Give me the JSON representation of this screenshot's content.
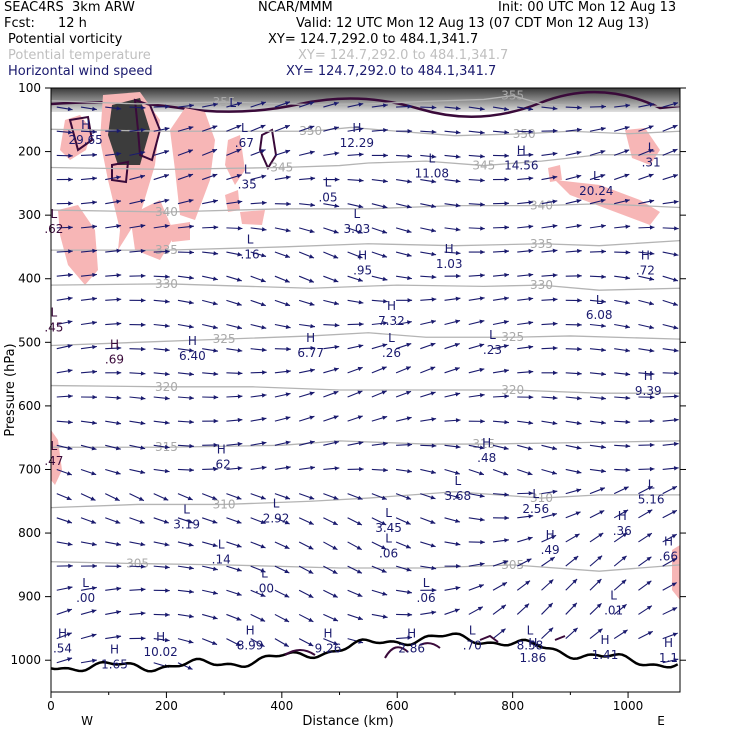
{
  "header": {
    "model": "SEAC4RS  3km ARW",
    "org": "NCAR/MMM",
    "init": "Init: 00 UTC Mon 12 Aug 13",
    "fcst_label": "Fcst:",
    "fcst_value": "12 h",
    "valid": "Valid: 12 UTC Mon 12 Aug 13 (07 CDT Mon 12 Aug 13)",
    "fields": [
      {
        "name": "Potential vorticity",
        "xy": "XY= 124.7,292.0 to 484.1,341.7",
        "color": "#000000"
      },
      {
        "name": "Potential temperature",
        "xy": "XY= 124.7,292.0 to 484.1,341.7",
        "color": "#bfbfbf"
      },
      {
        "name": "Horizontal wind speed",
        "xy": "XY= 124.7,292.0 to 484.1,341.7",
        "color": "#1a1a6e"
      }
    ]
  },
  "chart_data": {
    "type": "cross-section",
    "xlabel": "Distance (km)",
    "ylabel": "Pressure (hPa)",
    "xlim": [
      0,
      1090
    ],
    "ylim": [
      1050,
      100
    ],
    "x_ticks": [
      "0",
      "200",
      "400",
      "600",
      "800",
      "1000"
    ],
    "y_ticks": [
      "100",
      "200",
      "300",
      "400",
      "500",
      "600",
      "700",
      "800",
      "900",
      "1000"
    ],
    "x_ends": {
      "left": "W",
      "right": "E"
    },
    "colors": {
      "theta": "#b4b4b4",
      "wind": "#1a1a6e",
      "pv_fill": "#f7b6b6",
      "pv_line": "#3a0a3a"
    },
    "isentropes": [
      {
        "label": "355",
        "points": [
          [
            0,
            120
          ],
          [
            150,
            125
          ],
          [
            300,
            122
          ],
          [
            450,
            126
          ],
          [
            550,
            125
          ],
          [
            650,
            121
          ],
          [
            750,
            118
          ],
          [
            800,
            112
          ],
          [
            850,
            125
          ],
          [
            950,
            130
          ],
          [
            1090,
            128
          ]
        ]
      },
      {
        "label": "350",
        "points": [
          [
            0,
            165
          ],
          [
            200,
            168
          ],
          [
            450,
            168
          ],
          [
            520,
            162
          ],
          [
            600,
            168
          ],
          [
            700,
            175
          ],
          [
            820,
            172
          ],
          [
            900,
            168
          ],
          [
            1000,
            172
          ],
          [
            1090,
            168
          ]
        ]
      },
      {
        "label": "345",
        "points": [
          [
            0,
            225
          ],
          [
            200,
            228
          ],
          [
            400,
            225
          ],
          [
            500,
            222
          ],
          [
            550,
            218
          ],
          [
            650,
            215
          ],
          [
            750,
            222
          ],
          [
            850,
            215
          ],
          [
            950,
            205
          ],
          [
            1090,
            205
          ]
        ]
      },
      {
        "label": "340",
        "points": [
          [
            0,
            292
          ],
          [
            200,
            295
          ],
          [
            400,
            290
          ],
          [
            550,
            290
          ],
          [
            700,
            285
          ],
          [
            850,
            285
          ],
          [
            950,
            282
          ],
          [
            1090,
            288
          ]
        ]
      },
      {
        "label": "335",
        "points": [
          [
            0,
            355
          ],
          [
            200,
            355
          ],
          [
            400,
            350
          ],
          [
            550,
            345
          ],
          [
            700,
            348
          ],
          [
            850,
            345
          ],
          [
            950,
            348
          ],
          [
            1090,
            340
          ]
        ]
      },
      {
        "label": "330",
        "points": [
          [
            0,
            410
          ],
          [
            200,
            408
          ],
          [
            450,
            415
          ],
          [
            600,
            410
          ],
          [
            750,
            412
          ],
          [
            850,
            410
          ],
          [
            950,
            418
          ],
          [
            1090,
            415
          ]
        ]
      },
      {
        "label": "325",
        "points": [
          [
            0,
            505
          ],
          [
            150,
            500
          ],
          [
            300,
            495
          ],
          [
            450,
            490
          ],
          [
            550,
            485
          ],
          [
            650,
            492
          ],
          [
            800,
            492
          ],
          [
            900,
            490
          ],
          [
            1090,
            495
          ]
        ]
      },
      {
        "label": "320",
        "points": [
          [
            0,
            568
          ],
          [
            200,
            570
          ],
          [
            350,
            570
          ],
          [
            500,
            575
          ],
          [
            650,
            575
          ],
          [
            800,
            575
          ],
          [
            950,
            580
          ],
          [
            1090,
            580
          ]
        ]
      },
      {
        "label": "315",
        "points": [
          [
            0,
            665
          ],
          [
            200,
            665
          ],
          [
            400,
            662
          ],
          [
            500,
            655
          ],
          [
            650,
            660
          ],
          [
            750,
            660
          ],
          [
            900,
            658
          ],
          [
            1090,
            655
          ]
        ]
      },
      {
        "label": "310",
        "points": [
          [
            0,
            760
          ],
          [
            150,
            755
          ],
          [
            300,
            755
          ],
          [
            450,
            750
          ],
          [
            550,
            745
          ],
          [
            700,
            735
          ],
          [
            850,
            745
          ],
          [
            950,
            740
          ],
          [
            1090,
            740
          ]
        ]
      },
      {
        "label": "305",
        "points": [
          [
            0,
            845
          ],
          [
            150,
            848
          ],
          [
            300,
            850
          ],
          [
            500,
            855
          ],
          [
            650,
            855
          ],
          [
            800,
            850
          ],
          [
            950,
            860
          ],
          [
            1090,
            850
          ]
        ]
      }
    ],
    "extrema": [
      {
        "mark": "H",
        "value": "29.65",
        "x": 60,
        "p": 185
      },
      {
        "mark": "L",
        "value": "",
        "x": 315,
        "p": 150
      },
      {
        "mark": "L",
        "value": ".67",
        "x": 335,
        "p": 190
      },
      {
        "mark": "H",
        "value": "12.29",
        "x": 530,
        "p": 190
      },
      {
        "mark": "L",
        "value": "11.08",
        "x": 660,
        "p": 238
      },
      {
        "mark": "H",
        "value": "14.56",
        "x": 815,
        "p": 225
      },
      {
        "mark": "L",
        "value": ".35",
        "x": 340,
        "p": 255
      },
      {
        "mark": "L",
        "value": ".05",
        "x": 480,
        "p": 275
      },
      {
        "mark": "L",
        "value": ".16",
        "x": 345,
        "p": 365
      },
      {
        "mark": "L",
        "value": "3.03",
        "x": 530,
        "p": 325
      },
      {
        "mark": "H",
        "value": ".95",
        "x": 540,
        "p": 390
      },
      {
        "mark": "H",
        "value": "1.03",
        "x": 690,
        "p": 380
      },
      {
        "mark": "L",
        "value": "20.24",
        "x": 945,
        "p": 265
      },
      {
        "mark": "L",
        "value": ".31",
        "x": 1040,
        "p": 220
      },
      {
        "mark": "H",
        "value": ".72",
        "x": 1030,
        "p": 390
      },
      {
        "mark": "L",
        "value": "6.08",
        "x": 950,
        "p": 460
      },
      {
        "mark": "H",
        "value": "7.32",
        "x": 590,
        "p": 470
      },
      {
        "mark": "H",
        "value": ".69",
        "x": 110,
        "p": 530
      },
      {
        "mark": "H",
        "value": "6.40",
        "x": 245,
        "p": 525
      },
      {
        "mark": "H",
        "value": "6.77",
        "x": 450,
        "p": 520
      },
      {
        "mark": "L",
        "value": ".26",
        "x": 590,
        "p": 520
      },
      {
        "mark": "L",
        "value": ".23",
        "x": 765,
        "p": 515
      },
      {
        "mark": "H",
        "value": "9.39",
        "x": 1035,
        "p": 580
      },
      {
        "mark": "H",
        "value": ".62",
        "x": 295,
        "p": 695
      },
      {
        "mark": "H",
        "value": ".48",
        "x": 755,
        "p": 685
      },
      {
        "mark": "L",
        "value": "3.68",
        "x": 705,
        "p": 745
      },
      {
        "mark": "L",
        "value": "2.56",
        "x": 840,
        "p": 765
      },
      {
        "mark": "L",
        "value": "5.16",
        "x": 1040,
        "p": 750
      },
      {
        "mark": "L",
        "value": "3.19",
        "x": 235,
        "p": 790
      },
      {
        "mark": "L",
        "value": "2.92",
        "x": 390,
        "p": 780
      },
      {
        "mark": "L",
        "value": "3.45",
        "x": 585,
        "p": 795
      },
      {
        "mark": "H",
        "value": ".36",
        "x": 990,
        "p": 800
      },
      {
        "mark": "H",
        "value": ".49",
        "x": 865,
        "p": 830
      },
      {
        "mark": "H",
        "value": ".66",
        "x": 1070,
        "p": 840
      },
      {
        "mark": "L",
        "value": ".06",
        "x": 585,
        "p": 835
      },
      {
        "mark": "L",
        "value": ".14",
        "x": 295,
        "p": 845
      },
      {
        "mark": "L",
        "value": ".00",
        "x": 60,
        "p": 905
      },
      {
        "mark": "L",
        "value": ".00",
        "x": 370,
        "p": 890
      },
      {
        "mark": "L",
        "value": ".06",
        "x": 650,
        "p": 905
      },
      {
        "mark": "L",
        "value": ".01",
        "x": 975,
        "p": 925
      },
      {
        "mark": "H",
        "value": "8.99",
        "x": 345,
        "p": 980
      },
      {
        "mark": "H",
        "value": "9.26",
        "x": 480,
        "p": 985
      },
      {
        "mark": "H",
        "value": "2.86",
        "x": 625,
        "p": 985
      },
      {
        "mark": "H",
        "value": "10.02",
        "x": 190,
        "p": 990
      },
      {
        "mark": "H",
        "value": ".54",
        "x": 20,
        "p": 985
      },
      {
        "mark": "H",
        "value": "1.65",
        "x": 110,
        "p": 1010
      },
      {
        "mark": "L",
        "value": "8.58",
        "x": 830,
        "p": 980
      },
      {
        "mark": "H",
        "value": "1.86",
        "x": 835,
        "p": 1000
      },
      {
        "mark": "H",
        "value": "1.41",
        "x": 960,
        "p": 995
      },
      {
        "mark": "H",
        "value": "1.1",
        "x": 1070,
        "p": 1000
      },
      {
        "mark": "L",
        "value": ".45",
        "x": 5,
        "p": 480
      },
      {
        "mark": "L",
        "value": ".47",
        "x": 5,
        "p": 690
      },
      {
        "mark": "L",
        "value": ".62",
        "x": 5,
        "p": 325
      },
      {
        "mark": "L",
        "value": ".70",
        "x": 730,
        "p": 980
      }
    ]
  }
}
